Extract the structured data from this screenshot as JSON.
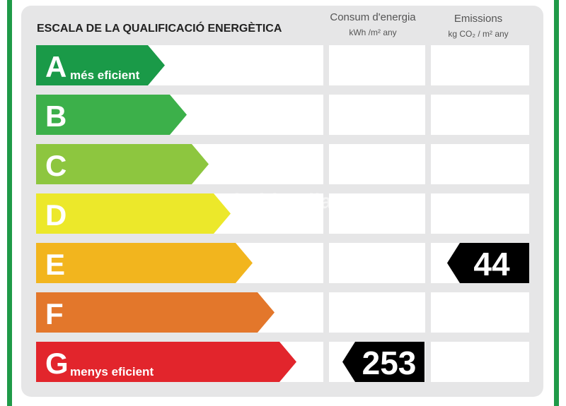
{
  "header": {
    "title": "ESCALA DE LA QUALIFICACIÓ ENERGÈTICA",
    "columns": [
      {
        "title": "Consum d'energia",
        "unit": "kWh /m² any"
      },
      {
        "title": "Emissions",
        "unit": "kg CO₂ / m² any"
      }
    ]
  },
  "watermark": "habitaclia",
  "classes": [
    {
      "letter": "A",
      "label": "més eficient",
      "color": "#1a9a48"
    },
    {
      "letter": "B",
      "color": "#3cb04a"
    },
    {
      "letter": "C",
      "color": "#8dc63f"
    },
    {
      "letter": "D",
      "color": "#ece82a"
    },
    {
      "letter": "E",
      "color": "#f2b51e",
      "emissions": 44
    },
    {
      "letter": "F",
      "color": "#e3772b"
    },
    {
      "letter": "G",
      "label": "menys eficient",
      "color": "#e2252c",
      "consumption": 253
    }
  ]
}
